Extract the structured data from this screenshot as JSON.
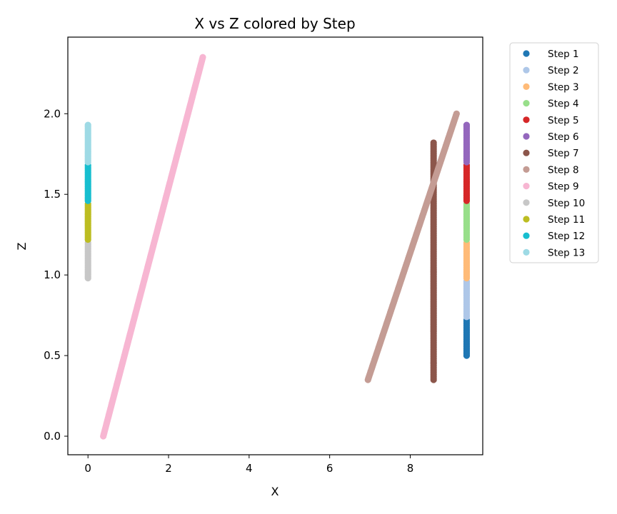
{
  "chart_data": {
    "type": "scatter",
    "title": "X vs Z colored by Step",
    "xlabel": "X",
    "ylabel": "Z",
    "xlim": [
      -0.5,
      9.8
    ],
    "ylim": [
      -0.115,
      2.475
    ],
    "xticks": [
      0,
      2,
      4,
      6,
      8
    ],
    "xtick_labels": [
      "0",
      "2",
      "4",
      "6",
      "8"
    ],
    "yticks": [
      0.0,
      0.5,
      1.0,
      1.5,
      2.0
    ],
    "ytick_labels": [
      "0.0",
      "0.5",
      "1.0",
      "1.5",
      "2.0"
    ],
    "grid": false,
    "legend_position": "outside-right",
    "series": [
      {
        "name": "Step 1",
        "color": "#1f77b4",
        "x": [
          9.4,
          9.4
        ],
        "y": [
          0.5,
          0.72
        ]
      },
      {
        "name": "Step 2",
        "color": "#aec7e8",
        "x": [
          9.4,
          9.4
        ],
        "y": [
          0.74,
          0.96
        ]
      },
      {
        "name": "Step 3",
        "color": "#ffbb78",
        "x": [
          9.4,
          9.4
        ],
        "y": [
          0.98,
          1.2
        ]
      },
      {
        "name": "Step 4",
        "color": "#98df8a",
        "x": [
          9.4,
          9.4
        ],
        "y": [
          1.22,
          1.44
        ]
      },
      {
        "name": "Step 5",
        "color": "#d62728",
        "x": [
          9.4,
          9.4
        ],
        "y": [
          1.46,
          1.68
        ]
      },
      {
        "name": "Step 6",
        "color": "#9467bd",
        "x": [
          9.4,
          9.4
        ],
        "y": [
          1.7,
          1.93
        ]
      },
      {
        "name": "Step 7",
        "color": "#8c564b",
        "x": [
          8.58,
          8.58
        ],
        "y": [
          0.35,
          1.82
        ]
      },
      {
        "name": "Step 8",
        "color": "#c49c94",
        "x": [
          6.95,
          9.15
        ],
        "y": [
          0.35,
          2.0
        ]
      },
      {
        "name": "Step 9",
        "color": "#f7b6d2",
        "x": [
          0.38,
          2.85
        ],
        "y": [
          0.0,
          2.35
        ]
      },
      {
        "name": "Step 10",
        "color": "#c7c7c7",
        "x": [
          0,
          0
        ],
        "y": [
          0.98,
          1.2
        ]
      },
      {
        "name": "Step 11",
        "color": "#bcbd22",
        "x": [
          0,
          0
        ],
        "y": [
          1.22,
          1.44
        ]
      },
      {
        "name": "Step 12",
        "color": "#17becf",
        "x": [
          0,
          0
        ],
        "y": [
          1.46,
          1.68
        ]
      },
      {
        "name": "Step 13",
        "color": "#9edae5",
        "x": [
          0,
          0
        ],
        "y": [
          1.7,
          1.93
        ]
      }
    ]
  }
}
